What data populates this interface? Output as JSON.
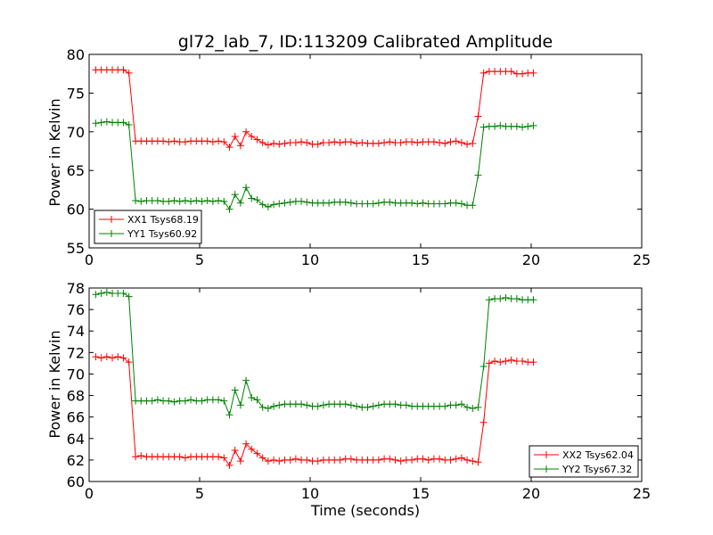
{
  "chart_data": [
    {
      "type": "line",
      "title": "gl72_lab_7, ID:113209 Calibrated Amplitude",
      "xlabel": "",
      "ylabel": "Power in Kelvin",
      "xlim": [
        0,
        25
      ],
      "ylim": [
        55,
        80
      ],
      "xticks": [
        "0",
        "5",
        "10",
        "15",
        "20",
        "25"
      ],
      "yticks": [
        "55",
        "60",
        "65",
        "70",
        "75",
        "80"
      ],
      "grid": false,
      "legend_position": "lower-left",
      "series": [
        {
          "name": "XX1 Tsys68.19",
          "color": "#ff0000",
          "x": [
            0.3,
            0.55,
            0.8,
            1.05,
            1.3,
            1.55,
            1.8,
            2.1,
            2.35,
            2.6,
            2.85,
            3.1,
            3.35,
            3.6,
            3.85,
            4.1,
            4.35,
            4.6,
            4.85,
            5.1,
            5.35,
            5.6,
            5.85,
            6.1,
            6.35,
            6.6,
            6.85,
            7.1,
            7.35,
            7.6,
            7.85,
            8.1,
            8.35,
            8.6,
            8.85,
            9.1,
            9.35,
            9.6,
            9.85,
            10.1,
            10.35,
            10.6,
            10.85,
            11.1,
            11.35,
            11.6,
            11.85,
            12.1,
            12.35,
            12.6,
            12.85,
            13.1,
            13.35,
            13.6,
            13.85,
            14.1,
            14.35,
            14.6,
            14.85,
            15.1,
            15.35,
            15.6,
            15.85,
            16.1,
            16.35,
            16.6,
            16.85,
            17.1,
            17.35,
            17.6,
            17.85,
            18.1,
            18.35,
            18.6,
            18.85,
            19.1,
            19.35,
            19.6,
            19.85,
            20.1
          ],
          "y": [
            78.0,
            78.0,
            78.0,
            78.0,
            78.0,
            78.0,
            77.6,
            68.8,
            68.8,
            68.8,
            68.8,
            68.8,
            68.8,
            68.7,
            68.8,
            68.7,
            68.7,
            68.8,
            68.8,
            68.8,
            68.8,
            68.7,
            68.8,
            68.7,
            68.0,
            69.4,
            68.2,
            70.0,
            69.4,
            69.0,
            68.6,
            68.3,
            68.5,
            68.4,
            68.5,
            68.6,
            68.6,
            68.7,
            68.6,
            68.4,
            68.4,
            68.6,
            68.6,
            68.7,
            68.6,
            68.7,
            68.7,
            68.5,
            68.6,
            68.5,
            68.5,
            68.5,
            68.6,
            68.7,
            68.6,
            68.6,
            68.7,
            68.7,
            68.6,
            68.7,
            68.7,
            68.7,
            68.6,
            68.5,
            68.7,
            68.8,
            68.6,
            68.4,
            68.5,
            72.0,
            77.6,
            77.8,
            77.8,
            77.8,
            77.8,
            77.8,
            77.5,
            77.5,
            77.6,
            77.6
          ]
        },
        {
          "name": "YY1 Tsys60.92",
          "color": "#008000",
          "x": [
            0.3,
            0.55,
            0.8,
            1.05,
            1.3,
            1.55,
            1.8,
            2.1,
            2.35,
            2.6,
            2.85,
            3.1,
            3.35,
            3.6,
            3.85,
            4.1,
            4.35,
            4.6,
            4.85,
            5.1,
            5.35,
            5.6,
            5.85,
            6.1,
            6.35,
            6.6,
            6.85,
            7.1,
            7.35,
            7.6,
            7.85,
            8.1,
            8.35,
            8.6,
            8.85,
            9.1,
            9.35,
            9.6,
            9.85,
            10.1,
            10.35,
            10.6,
            10.85,
            11.1,
            11.35,
            11.6,
            11.85,
            12.1,
            12.35,
            12.6,
            12.85,
            13.1,
            13.35,
            13.6,
            13.85,
            14.1,
            14.35,
            14.6,
            14.85,
            15.1,
            15.35,
            15.6,
            15.85,
            16.1,
            16.35,
            16.6,
            16.85,
            17.1,
            17.35,
            17.6,
            17.85,
            18.1,
            18.35,
            18.6,
            18.85,
            19.1,
            19.35,
            19.6,
            19.85,
            20.1
          ],
          "y": [
            71.1,
            71.2,
            71.3,
            71.2,
            71.2,
            71.2,
            70.9,
            61.1,
            61.0,
            61.1,
            61.1,
            61.1,
            61.0,
            61.0,
            61.1,
            61.0,
            61.1,
            61.0,
            61.1,
            61.0,
            61.1,
            61.0,
            61.1,
            61.0,
            60.0,
            61.9,
            60.8,
            62.8,
            61.4,
            61.2,
            60.6,
            60.3,
            60.6,
            60.7,
            60.8,
            60.9,
            61.0,
            61.0,
            60.9,
            60.8,
            60.8,
            60.8,
            60.8,
            60.9,
            60.9,
            60.9,
            60.8,
            60.7,
            60.7,
            60.7,
            60.7,
            60.8,
            60.9,
            60.9,
            60.8,
            60.8,
            60.8,
            60.8,
            60.7,
            60.8,
            60.7,
            60.7,
            60.7,
            60.7,
            60.8,
            60.8,
            60.7,
            60.5,
            60.5,
            64.4,
            70.6,
            70.7,
            70.7,
            70.8,
            70.7,
            70.7,
            70.7,
            70.6,
            70.7,
            70.8
          ]
        }
      ]
    },
    {
      "type": "line",
      "title": "",
      "xlabel": "Time (seconds)",
      "ylabel": "Power in Kelvin",
      "xlim": [
        0,
        25
      ],
      "ylim": [
        60,
        78
      ],
      "xticks": [
        "0",
        "5",
        "10",
        "15",
        "20",
        "25"
      ],
      "yticks": [
        "60",
        "62",
        "64",
        "66",
        "68",
        "70",
        "72",
        "74",
        "76",
        "78"
      ],
      "grid": false,
      "legend_position": "lower-right",
      "series": [
        {
          "name": "XX2 Tsys62.04",
          "color": "#ff0000",
          "x": [
            0.3,
            0.55,
            0.8,
            1.05,
            1.3,
            1.55,
            1.8,
            2.1,
            2.35,
            2.6,
            2.85,
            3.1,
            3.35,
            3.6,
            3.85,
            4.1,
            4.35,
            4.6,
            4.85,
            5.1,
            5.35,
            5.6,
            5.85,
            6.1,
            6.35,
            6.6,
            6.85,
            7.1,
            7.35,
            7.6,
            7.85,
            8.1,
            8.35,
            8.6,
            8.85,
            9.1,
            9.35,
            9.6,
            9.85,
            10.1,
            10.35,
            10.6,
            10.85,
            11.1,
            11.35,
            11.6,
            11.85,
            12.1,
            12.35,
            12.6,
            12.85,
            13.1,
            13.35,
            13.6,
            13.85,
            14.1,
            14.35,
            14.6,
            14.85,
            15.1,
            15.35,
            15.6,
            15.85,
            16.1,
            16.35,
            16.6,
            16.85,
            17.1,
            17.35,
            17.6,
            17.85,
            18.1,
            18.35,
            18.6,
            18.85,
            19.1,
            19.35,
            19.6,
            19.85,
            20.1
          ],
          "y": [
            71.6,
            71.5,
            71.6,
            71.5,
            71.6,
            71.5,
            71.1,
            62.3,
            62.4,
            62.3,
            62.3,
            62.3,
            62.3,
            62.3,
            62.3,
            62.3,
            62.2,
            62.3,
            62.3,
            62.3,
            62.3,
            62.3,
            62.3,
            62.2,
            61.5,
            62.9,
            61.9,
            63.5,
            63.0,
            62.6,
            62.2,
            61.9,
            62.0,
            61.9,
            62.0,
            62.0,
            62.1,
            62.0,
            62.0,
            61.9,
            61.9,
            62.0,
            62.0,
            62.0,
            62.0,
            62.1,
            62.1,
            62.0,
            62.0,
            62.0,
            62.0,
            62.0,
            62.1,
            62.1,
            62.0,
            61.9,
            62.0,
            62.0,
            62.1,
            62.1,
            62.0,
            62.1,
            62.1,
            62.0,
            62.0,
            62.1,
            62.2,
            62.0,
            61.9,
            61.8,
            65.5,
            71.0,
            71.2,
            71.1,
            71.2,
            71.3,
            71.2,
            71.2,
            71.1,
            71.1
          ]
        },
        {
          "name": "YY2 Tsys67.32",
          "color": "#008000",
          "x": [
            0.3,
            0.55,
            0.8,
            1.05,
            1.3,
            1.55,
            1.8,
            2.1,
            2.35,
            2.6,
            2.85,
            3.1,
            3.35,
            3.6,
            3.85,
            4.1,
            4.35,
            4.6,
            4.85,
            5.1,
            5.35,
            5.6,
            5.85,
            6.1,
            6.35,
            6.6,
            6.85,
            7.1,
            7.35,
            7.6,
            7.85,
            8.1,
            8.35,
            8.6,
            8.85,
            9.1,
            9.35,
            9.6,
            9.85,
            10.1,
            10.35,
            10.6,
            10.85,
            11.1,
            11.35,
            11.6,
            11.85,
            12.1,
            12.35,
            12.6,
            12.85,
            13.1,
            13.35,
            13.6,
            13.85,
            14.1,
            14.35,
            14.6,
            14.85,
            15.1,
            15.35,
            15.6,
            15.85,
            16.1,
            16.35,
            16.6,
            16.85,
            17.1,
            17.35,
            17.6,
            17.85,
            18.1,
            18.35,
            18.6,
            18.85,
            19.1,
            19.35,
            19.6,
            19.85,
            20.1
          ],
          "y": [
            77.4,
            77.5,
            77.6,
            77.5,
            77.5,
            77.5,
            77.2,
            67.5,
            67.5,
            67.5,
            67.5,
            67.6,
            67.5,
            67.5,
            67.4,
            67.5,
            67.5,
            67.6,
            67.5,
            67.5,
            67.6,
            67.6,
            67.6,
            67.5,
            66.2,
            68.5,
            67.1,
            69.4,
            67.8,
            67.6,
            66.9,
            66.8,
            67.0,
            67.1,
            67.2,
            67.2,
            67.2,
            67.2,
            67.1,
            67.0,
            67.0,
            67.1,
            67.2,
            67.2,
            67.2,
            67.2,
            67.1,
            67.0,
            66.9,
            66.9,
            67.0,
            67.1,
            67.2,
            67.2,
            67.2,
            67.1,
            67.1,
            67.0,
            67.0,
            67.0,
            67.0,
            67.0,
            67.0,
            67.0,
            67.1,
            67.1,
            67.2,
            66.9,
            66.8,
            66.9,
            70.7,
            76.9,
            77.0,
            77.0,
            77.1,
            77.0,
            77.0,
            76.9,
            76.9,
            76.9
          ]
        }
      ]
    }
  ]
}
